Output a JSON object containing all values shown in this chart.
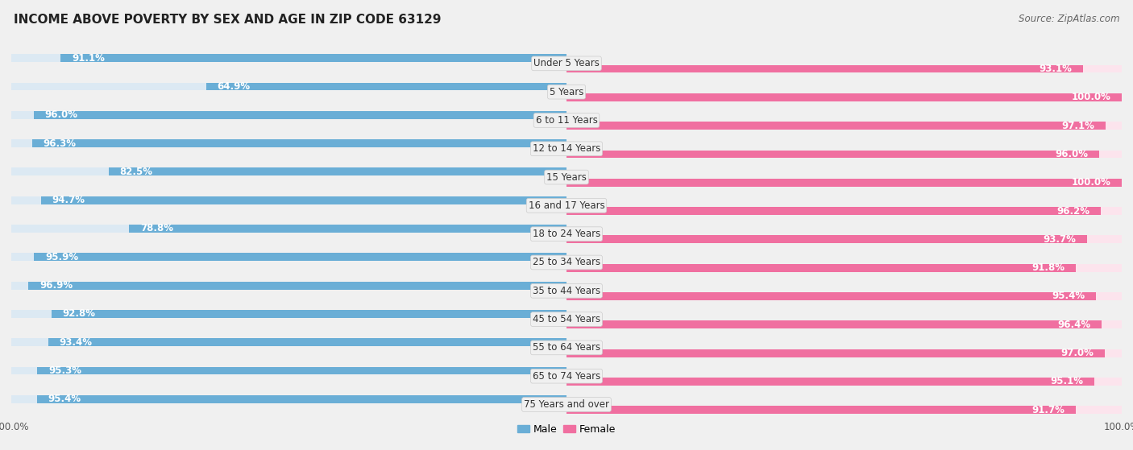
{
  "title": "INCOME ABOVE POVERTY BY SEX AND AGE IN ZIP CODE 63129",
  "source": "Source: ZipAtlas.com",
  "categories": [
    "Under 5 Years",
    "5 Years",
    "6 to 11 Years",
    "12 to 14 Years",
    "15 Years",
    "16 and 17 Years",
    "18 to 24 Years",
    "25 to 34 Years",
    "35 to 44 Years",
    "45 to 54 Years",
    "55 to 64 Years",
    "65 to 74 Years",
    "75 Years and over"
  ],
  "male": [
    91.1,
    64.9,
    96.0,
    96.3,
    82.5,
    94.7,
    78.8,
    95.9,
    96.9,
    92.8,
    93.4,
    95.3,
    95.4
  ],
  "female": [
    93.1,
    100.0,
    97.1,
    96.0,
    100.0,
    96.2,
    93.7,
    91.8,
    95.4,
    96.4,
    97.0,
    95.1,
    91.7
  ],
  "male_color": "#6aaed6",
  "male_color_light": "#b8d9ee",
  "female_color": "#f06fa0",
  "female_color_light": "#f9c0d5",
  "male_label": "Male",
  "female_label": "Female",
  "background_color": "#f0f0f0",
  "bar_background_left": "#dce9f3",
  "bar_background_right": "#fce4ed",
  "title_fontsize": 11,
  "label_fontsize": 8.5,
  "value_fontsize": 8.5,
  "source_fontsize": 8.5,
  "axis_label_fontsize": 8.5
}
